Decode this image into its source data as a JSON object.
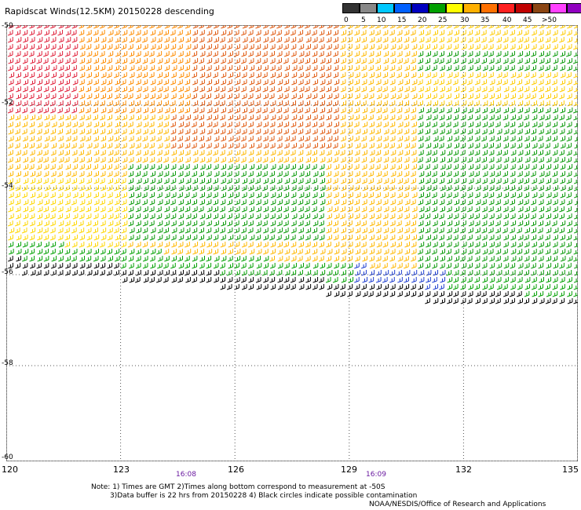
{
  "header": {
    "title": "Rapidscat Winds(12.5KM) 20150228 descending"
  },
  "legend": {
    "labels": [
      "0",
      "5",
      "10",
      "15",
      "20",
      "25",
      "30",
      "35",
      "40",
      "45",
      ">50 knots"
    ],
    "colors": [
      "#333333",
      "#888888",
      "#00c8ff",
      "#0060ff",
      "#0000c0",
      "#00a000",
      "#ffff00",
      "#ffb000",
      "#ff7000",
      "#ff2020",
      "#c00000",
      "#8b4513",
      "#ff40ff",
      "#9000c0",
      "#4b0082"
    ]
  },
  "axes": {
    "lat_labels": [
      "-50",
      "-52",
      "-54",
      "-56",
      "-58",
      "-60"
    ],
    "lon_labels": [
      "120",
      "123",
      "126",
      "129",
      "132",
      "135"
    ]
  },
  "times": [
    "16:08",
    "16:09"
  ],
  "notes": [
    "Note: 1) Times are GMT 2)Times along bottom correspond to measurement at -50S",
    "3)Data buffer is 22 hrs from 20150228 4) Black circles indicate possible contamination"
  ],
  "credit": "NOAA/NESDIS/Office of Research and Applications"
}
